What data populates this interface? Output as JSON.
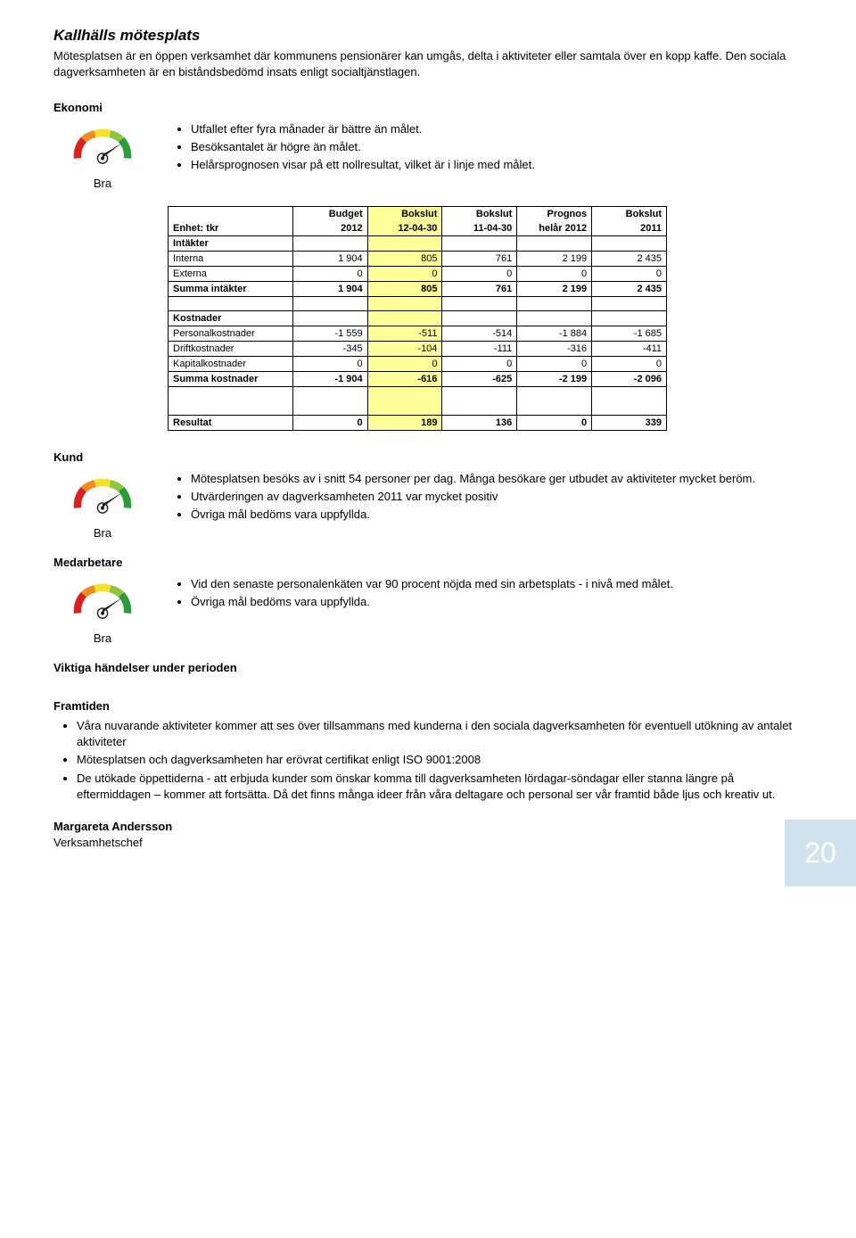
{
  "title": "Kallhälls mötesplats",
  "intro": "Mötesplatsen är en öppen verksamhet där kommunens pensionärer kan umgås, delta i aktiviteter eller samtala över en kopp kaffe. Den sociala dagverksamheten är en biståndsbedömd insats enligt socialtjänstlagen.",
  "sections": {
    "ekonomi": {
      "heading": "Ekonomi",
      "gauge_label": "Bra",
      "bullets": [
        "Utfallet efter fyra månader är bättre än målet.",
        "Besöksantalet är högre än målet.",
        "Helårsprognosen visar på ett nollresultat, vilket är i linje med målet."
      ]
    },
    "kund": {
      "heading": "Kund",
      "gauge_label": "Bra",
      "bullets": [
        "Mötesplatsen besöks av i snitt 54 personer per dag. Många besökare ger utbudet av aktiviteter mycket beröm.",
        "Utvärderingen av dagverksamheten 2011 var mycket positiv",
        "Övriga mål bedöms vara uppfyllda."
      ]
    },
    "medarbetare": {
      "heading": "Medarbetare",
      "gauge_label": "Bra",
      "bullets": [
        "Vid den senaste personalenkäten var 90 procent nöjda med sin arbetsplats - i nivå med målet.",
        "Övriga mål bedöms vara uppfyllda."
      ]
    }
  },
  "table": {
    "headers_line1": [
      "",
      "Budget",
      "Bokslut",
      "Bokslut",
      "Prognos",
      "Bokslut"
    ],
    "headers_line2": [
      "Enhet: tkr",
      "2012",
      "12-04-30",
      "11-04-30",
      "helår 2012",
      "2011"
    ],
    "groups": [
      {
        "title": "Intäkter",
        "rows": [
          {
            "label": "Interna",
            "v": [
              "1 904",
              "805",
              "761",
              "2 199",
              "2 435"
            ]
          },
          {
            "label": "Externa",
            "v": [
              "0",
              "0",
              "0",
              "0",
              "0"
            ]
          }
        ],
        "sum": {
          "label": "Summa intäkter",
          "v": [
            "1 904",
            "805",
            "761",
            "2 199",
            "2 435"
          ]
        }
      },
      {
        "title": "Kostnader",
        "rows": [
          {
            "label": "Personalkostnader",
            "v": [
              "-1 559",
              "-511",
              "-514",
              "-1 884",
              "-1 685"
            ]
          },
          {
            "label": "Driftkostnader",
            "v": [
              "-345",
              "-104",
              "-111",
              "-316",
              "-411"
            ]
          },
          {
            "label": "Kapitalkostnader",
            "v": [
              "0",
              "0",
              "0",
              "0",
              "0"
            ]
          }
        ],
        "sum": {
          "label": "Summa kostnader",
          "v": [
            "-1 904",
            "-616",
            "-625",
            "-2 199",
            "-2 096"
          ]
        }
      }
    ],
    "result": {
      "label": "Resultat",
      "v": [
        "0",
        "189",
        "136",
        "0",
        "339"
      ]
    }
  },
  "viktiga_heading": "Viktiga händelser under perioden",
  "framtiden": {
    "heading": "Framtiden",
    "bullets": [
      "Våra nuvarande aktiviteter kommer att ses över tillsammans med kunderna i den sociala dagverksamheten för eventuell utökning av antalet aktiviteter",
      "Mötesplatsen och dagverksamheten har erövrat certifikat enligt ISO 9001:2008",
      "De utökade öppettiderna - att erbjuda kunder som önskar komma till dagverksamheten lördagar-söndagar eller stanna längre på eftermiddagen – kommer att fortsätta. Då det finns många ideer från våra deltagare och personal ser vår framtid både ljus och kreativ ut."
    ]
  },
  "signature": {
    "name": "Margareta Andersson",
    "role": "Verksamhetschef"
  },
  "page_number": "20",
  "gauge_colors": {
    "red": "#d9221f",
    "orange": "#f08b1c",
    "yellow": "#f7e028",
    "green_light": "#8dc63f",
    "green": "#2a9d3a",
    "needle": "#222222"
  }
}
